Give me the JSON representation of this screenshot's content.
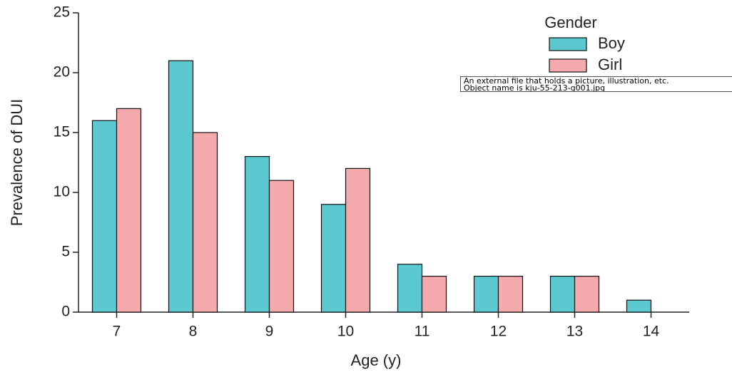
{
  "chart_data": {
    "type": "bar",
    "x_label": "Age (y)",
    "y_label": "Prevalence of DUI",
    "legend_title": "Gender",
    "legend": "top-right",
    "categories": [
      "7",
      "8",
      "9",
      "10",
      "11",
      "12",
      "13",
      "14"
    ],
    "series": [
      {
        "name": "Boy",
        "color": "#5cc8cf",
        "values": [
          16,
          21,
          13,
          9,
          4,
          3,
          3,
          1
        ]
      },
      {
        "name": "Girl",
        "color": "#f4a9ad",
        "values": [
          17,
          15,
          11,
          12,
          3,
          3,
          3,
          0
        ]
      }
    ],
    "ylim": [
      0,
      25
    ],
    "yticks": [
      0,
      5,
      10,
      15,
      20,
      25
    ],
    "grid": false
  },
  "tooltip": {
    "lines": [
      "An external file that holds a picture, illustration, etc.",
      "Object name is kju-55-213-g001.jpg"
    ]
  }
}
